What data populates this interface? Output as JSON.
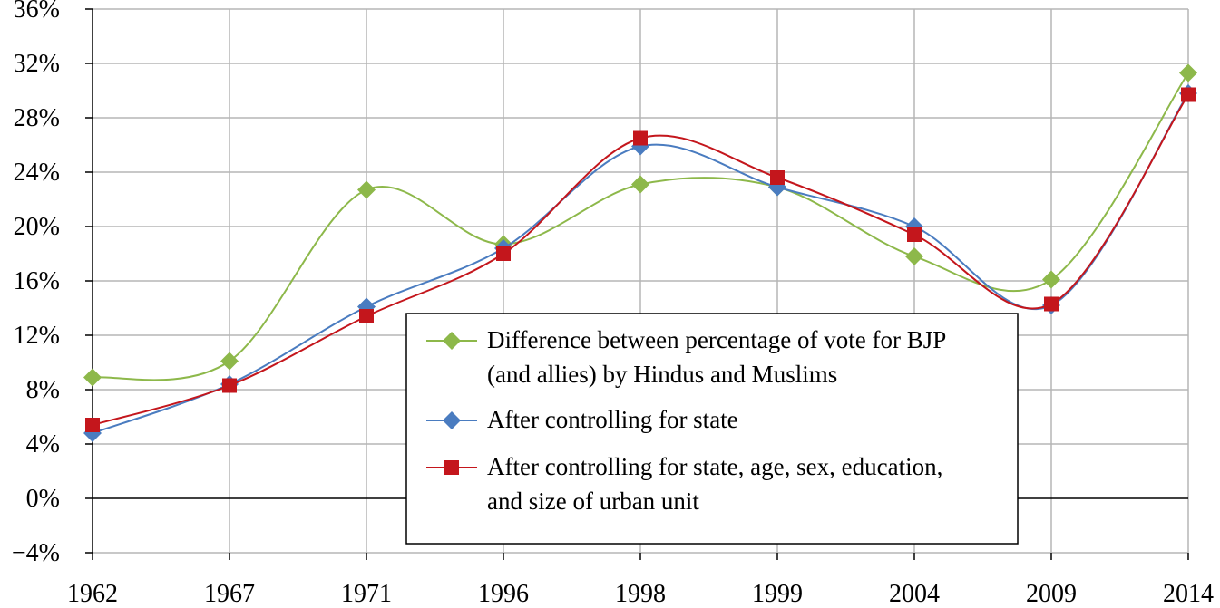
{
  "chart_data": {
    "type": "line",
    "title": "",
    "xlabel": "",
    "ylabel": "",
    "categories": [
      "1962",
      "1967",
      "1971",
      "1996",
      "1998",
      "1999",
      "2004",
      "2009",
      "2014"
    ],
    "ylim": [
      -4,
      36
    ],
    "yticks": [
      -4,
      0,
      4,
      8,
      12,
      16,
      20,
      24,
      28,
      32,
      36
    ],
    "ytick_labels": [
      "−4%",
      "0%",
      "4%",
      "8%",
      "12%",
      "16%",
      "20%",
      "24%",
      "28%",
      "32%",
      "36%"
    ],
    "grid": true,
    "smooth": true,
    "legend_position": "lower-center",
    "series": [
      {
        "name": "Difference between percentage of vote for BJP (and allies) by Hindus and Muslims",
        "name_lines": [
          "Difference between percentage of vote for BJP",
          "(and allies) by Hindus and Muslims"
        ],
        "color": "#8db84a",
        "marker": "diamond",
        "values": [
          8.9,
          10.1,
          22.7,
          18.7,
          23.1,
          22.9,
          17.8,
          16.1,
          31.3
        ]
      },
      {
        "name": "After controlling for state",
        "name_lines": [
          "After controlling for state"
        ],
        "color": "#4a7cc0",
        "marker": "diamond",
        "values": [
          4.8,
          8.4,
          14.1,
          18.4,
          25.9,
          22.9,
          20.0,
          14.2,
          29.8
        ]
      },
      {
        "name": "After controlling for state, age, sex, education, and size of urban unit",
        "name_lines": [
          "After controlling for state, age, sex, education,",
          "and size of urban unit"
        ],
        "color": "#c4161c",
        "marker": "square",
        "values": [
          5.4,
          8.3,
          13.4,
          18.0,
          26.5,
          23.6,
          19.4,
          14.3,
          29.7
        ]
      }
    ]
  }
}
